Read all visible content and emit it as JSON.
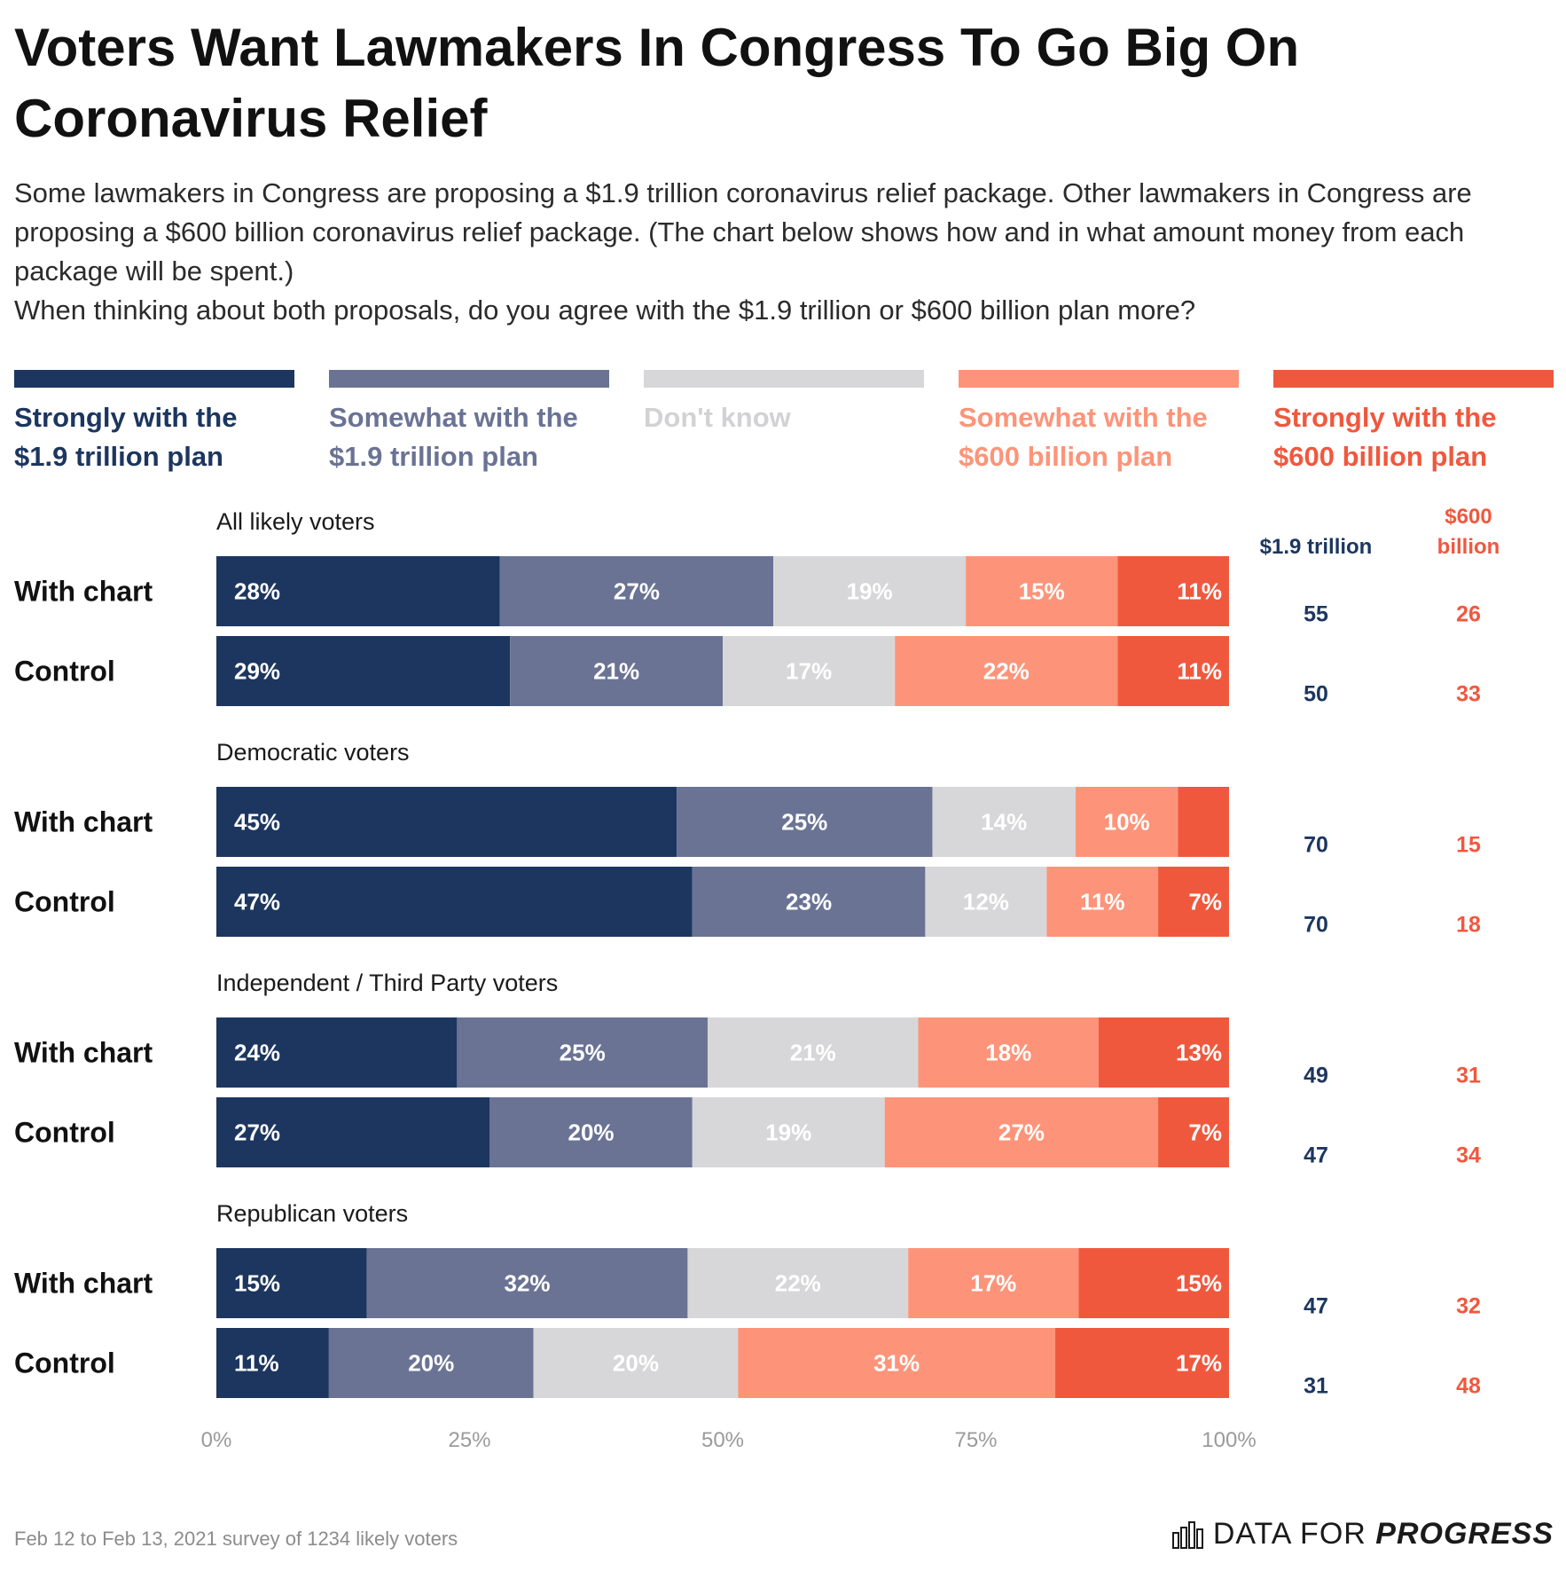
{
  "title": "Voters Want Lawmakers In Congress To Go Big On Coronavirus Relief",
  "subtitle": {
    "line1": "Some lawmakers in Congress are proposing a $1.9 trillion coronavirus relief package. Other lawmakers in Congress are proposing a $600 billion coronavirus relief package. (The chart below shows how and in what amount money from each package will be spent.)",
    "line2": "When thinking about both proposals, do you agree with the $1.9 trillion or $600 billion plan more?"
  },
  "colors": {
    "strong_19": "#1c365f",
    "somewhat_19": "#6a7394",
    "dont_know": "#d7d7d9",
    "somewhat_600": "#fd9479",
    "strong_600": "#f0583e",
    "label_dont_know": "#d2d2d4",
    "axis": "#9a9a9a"
  },
  "legend": [
    {
      "line1": "Strongly with the",
      "line2": "$1.9 trillion plan",
      "color": "#1c365f",
      "text_color": "#1c365f"
    },
    {
      "line1": "Somewhat with the",
      "line2": "$1.9 trillion plan",
      "color": "#6a7394",
      "text_color": "#6a7394"
    },
    {
      "line1": "Don't know",
      "line2": "",
      "color": "#d7d7d9",
      "text_color": "#d2d2d4"
    },
    {
      "line1": "Somewhat with the",
      "line2": "$600 billion plan",
      "color": "#fd9479",
      "text_color": "#fd9479"
    },
    {
      "line1": "Strongly with the",
      "line2": "$600 billion plan",
      "color": "#f0583e",
      "text_color": "#f0583e"
    }
  ],
  "columns": {
    "trillion": "$1.9 trillion",
    "billion_line1": "$600",
    "billion_line2": "billion"
  },
  "chart_data": {
    "type": "bar",
    "orientation": "horizontal",
    "stacked": true,
    "normalized": true,
    "series_names": [
      "Strongly with the $1.9 trillion plan",
      "Somewhat with the $1.9 trillion plan",
      "Don't know",
      "Somewhat with the $600 billion plan",
      "Strongly with the $600 billion plan"
    ],
    "groups": [
      {
        "name": "All likely voters",
        "rows": [
          {
            "label": "With chart",
            "values": [
              28,
              27,
              19,
              15,
              11
            ],
            "labels": [
              "28%",
              "27%",
              "19%",
              "15%",
              "11%"
            ],
            "total_19": "55",
            "total_600": "26"
          },
          {
            "label": "Control",
            "values": [
              29,
              21,
              17,
              22,
              11
            ],
            "labels": [
              "29%",
              "21%",
              "17%",
              "22%",
              "11%"
            ],
            "total_19": "50",
            "total_600": "33"
          }
        ]
      },
      {
        "name": "Democratic voters",
        "rows": [
          {
            "label": "With chart",
            "values": [
              45,
              25,
              14,
              10,
              5
            ],
            "labels": [
              "45%",
              "25%",
              "14%",
              "10%",
              ""
            ],
            "total_19": "70",
            "total_600": "15"
          },
          {
            "label": "Control",
            "values": [
              47,
              23,
              12,
              11,
              7
            ],
            "labels": [
              "47%",
              "23%",
              "12%",
              "11%",
              "7%"
            ],
            "total_19": "70",
            "total_600": "18"
          }
        ]
      },
      {
        "name": "Independent / Third Party voters",
        "rows": [
          {
            "label": "With chart",
            "values": [
              24,
              25,
              21,
              18,
              13
            ],
            "labels": [
              "24%",
              "25%",
              "21%",
              "18%",
              "13%"
            ],
            "total_19": "49",
            "total_600": "31"
          },
          {
            "label": "Control",
            "values": [
              27,
              20,
              19,
              27,
              7
            ],
            "labels": [
              "27%",
              "20%",
              "19%",
              "27%",
              "7%"
            ],
            "total_19": "47",
            "total_600": "34"
          }
        ]
      },
      {
        "name": "Republican voters",
        "rows": [
          {
            "label": "With chart",
            "values": [
              15,
              32,
              22,
              17,
              15
            ],
            "labels": [
              "15%",
              "32%",
              "22%",
              "17%",
              "15%"
            ],
            "total_19": "47",
            "total_600": "32"
          },
          {
            "label": "Control",
            "values": [
              11,
              20,
              20,
              31,
              17
            ],
            "labels": [
              "11%",
              "20%",
              "20%",
              "31%",
              "17%"
            ],
            "total_19": "31",
            "total_600": "48"
          }
        ]
      }
    ],
    "x_ticks": [
      "0%",
      "25%",
      "50%",
      "75%",
      "100%"
    ],
    "x_tick_values": [
      0,
      25,
      50,
      75,
      100
    ],
    "xlim": [
      0,
      100
    ]
  },
  "footer": {
    "note": "Feb 12 to Feb 13, 2021 survey of 1234 likely voters",
    "brand_regular": "DATA FOR",
    "brand_bold": "PROGRESS"
  }
}
